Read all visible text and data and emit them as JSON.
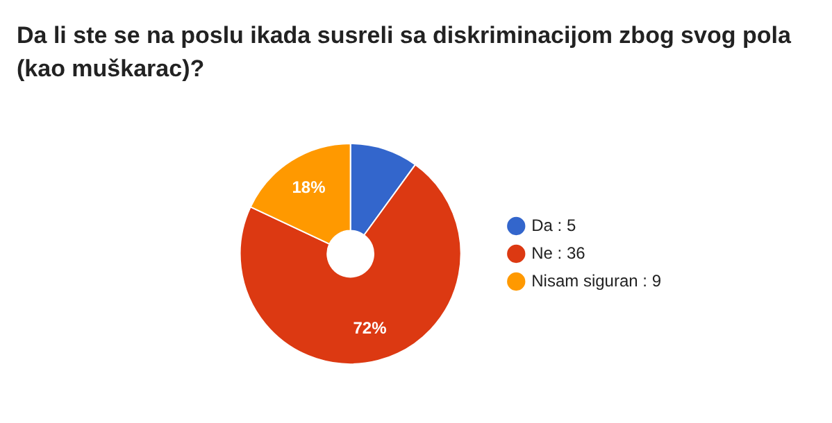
{
  "chart_data": {
    "type": "donut",
    "title": "Da li ste se na poslu ikada susreli sa diskriminacijom zbog svog pola (kao muškarac)?",
    "categories": [
      "Da : 5",
      "Ne : 36",
      "Nisam siguran : 9"
    ],
    "values": [
      10,
      72,
      18
    ],
    "colors": [
      "#3366cc",
      "#dc3912",
      "#ff9900"
    ],
    "value_labels": [
      null,
      "72%",
      "18%"
    ],
    "legend": "right"
  }
}
